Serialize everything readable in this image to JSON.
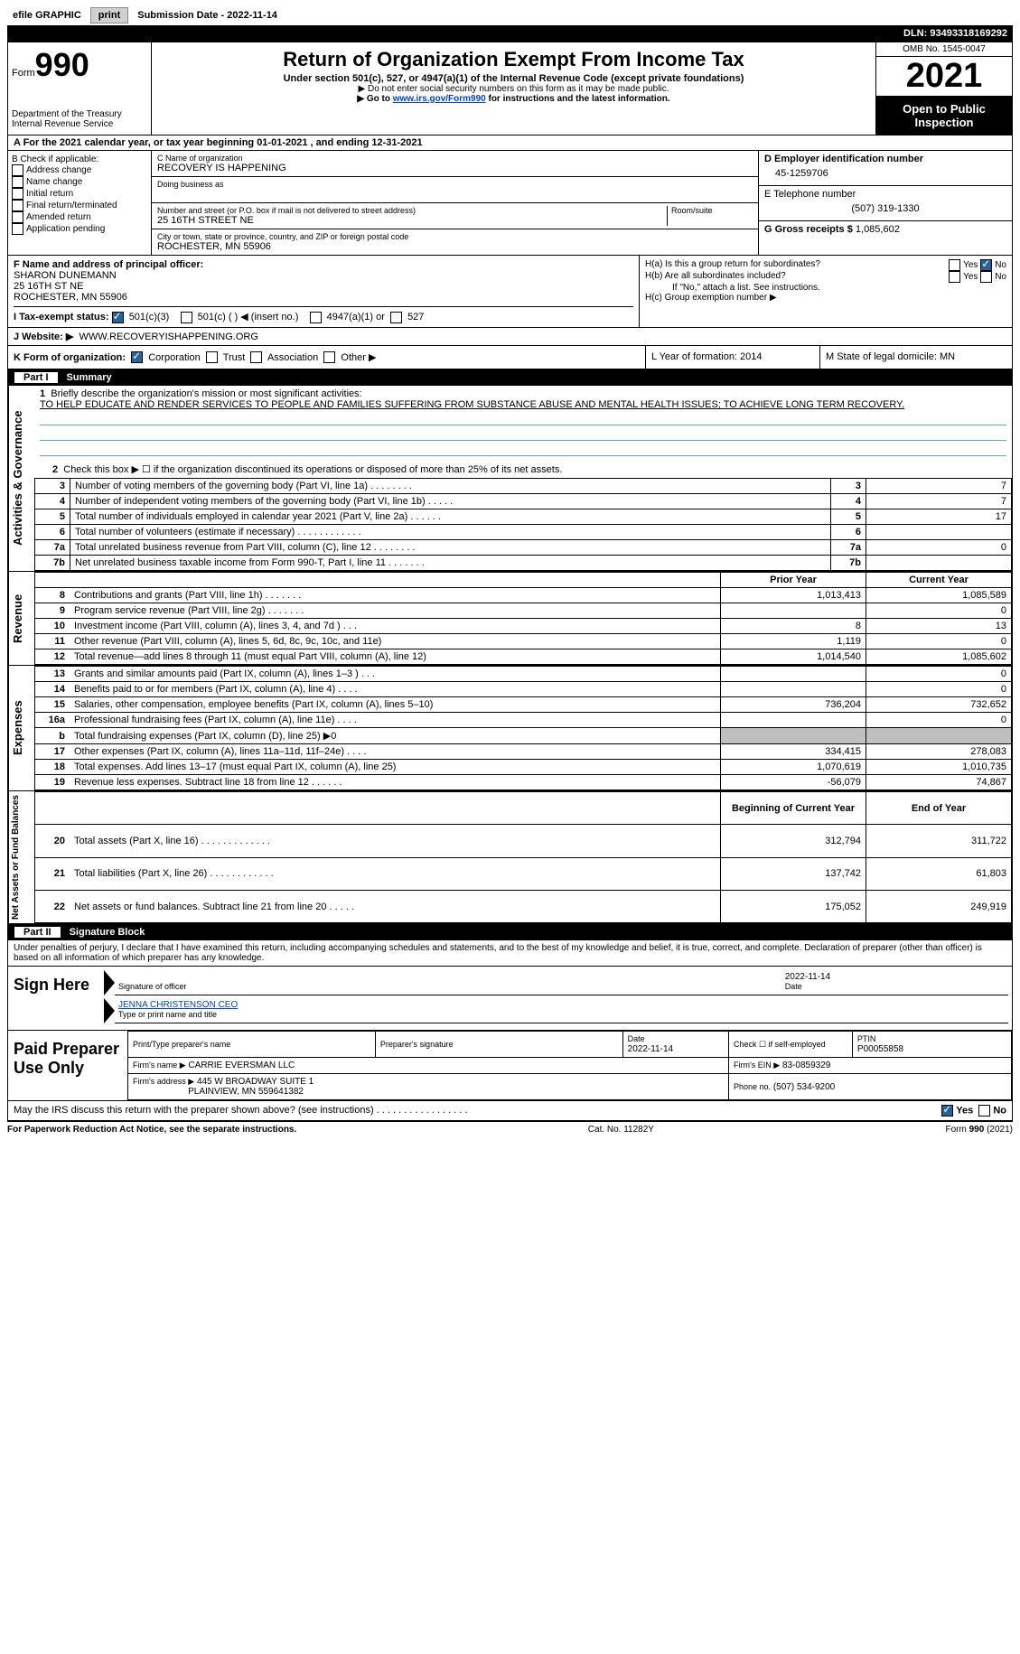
{
  "top_bar": {
    "efile_label": "efile GRAPHIC",
    "print_btn": "print",
    "submission_label": "Submission Date - 2022-11-14",
    "dln": "DLN: 93493318169292"
  },
  "header": {
    "form_word": "Form",
    "form_number": "990",
    "dept": "Department of the Treasury",
    "irs": "Internal Revenue Service",
    "title": "Return of Organization Exempt From Income Tax",
    "subtitle": "Under section 501(c), 527, or 4947(a)(1) of the Internal Revenue Code (except private foundations)",
    "note1": "▶ Do not enter social security numbers on this form as it may be made public.",
    "note2_pre": "▶ Go to ",
    "note2_link": "www.irs.gov/Form990",
    "note2_post": " for instructions and the latest information.",
    "omb": "OMB No. 1545-0047",
    "year": "2021",
    "open_public": "Open to Public Inspection"
  },
  "row_a": "A For the 2021 calendar year, or tax year beginning 01-01-2021     , and ending 12-31-2021",
  "box_b": {
    "label": "B Check if applicable:",
    "items": [
      "Address change",
      "Name change",
      "Initial return",
      "Final return/terminated",
      "Amended return",
      "Application pending"
    ]
  },
  "box_c": {
    "name_label": "C Name of organization",
    "name": "RECOVERY IS HAPPENING",
    "dba_label": "Doing business as",
    "addr_label": "Number and street (or P.O. box if mail is not delivered to street address)",
    "room_label": "Room/suite",
    "addr": "25 16TH STREET NE",
    "city_label": "City or town, state or province, country, and ZIP or foreign postal code",
    "city": "ROCHESTER, MN  55906"
  },
  "box_d": {
    "label": "D Employer identification number",
    "value": "45-1259706"
  },
  "box_e": {
    "label": "E Telephone number",
    "value": "(507) 319-1330"
  },
  "box_g": {
    "label": "G Gross receipts $",
    "value": "1,085,602"
  },
  "box_f": {
    "label": "F Name and address of principal officer:",
    "name": "SHARON DUNEMANN",
    "addr1": "25 16TH ST NE",
    "addr2": "ROCHESTER, MN  55906"
  },
  "box_h": {
    "ha": "H(a)  Is this a group return for subordinates?",
    "hb": "H(b)  Are all subordinates included?",
    "hb_note": "If \"No,\" attach a list. See instructions.",
    "hc": "H(c)  Group exemption number ▶"
  },
  "row_i": {
    "label": "I    Tax-exempt status:",
    "opts": [
      "501(c)(3)",
      "501(c) (   ) ◀ (insert no.)",
      "4947(a)(1) or",
      "527"
    ]
  },
  "row_j": {
    "label": "J   Website: ▶",
    "value": "WWW.RECOVERYISHAPPENING.ORG"
  },
  "row_k": {
    "label": "K Form of organization:",
    "opts": [
      "Corporation",
      "Trust",
      "Association",
      "Other ▶"
    ]
  },
  "row_l": {
    "label": "L Year of formation: 2014"
  },
  "row_m": {
    "label": "M State of legal domicile: MN"
  },
  "part1": {
    "header": "Summary",
    "line1_label": "Briefly describe the organization's mission or most significant activities:",
    "line1_text": "TO HELP EDUCATE AND RENDER SERVICES TO PEOPLE AND FAMILIES SUFFERING FROM SUBSTANCE ABUSE AND MENTAL HEALTH ISSUES; TO ACHIEVE LONG TERM RECOVERY.",
    "line2": "Check this box ▶ ☐ if the organization discontinued its operations or disposed of more than 25% of its net assets.",
    "governance": [
      {
        "n": "3",
        "t": "Number of voting members of the governing body (Part VI, line 1a)   .    .    .    .    .    .    .    .",
        "v": "7"
      },
      {
        "n": "4",
        "t": "Number of independent voting members of the governing body (Part VI, line 1b)   .    .    .    .    .",
        "v": "7"
      },
      {
        "n": "5",
        "t": "Total number of individuals employed in calendar year 2021 (Part V, line 2a)   .    .    .    .    .    .",
        "v": "17"
      },
      {
        "n": "6",
        "t": "Total number of volunteers (estimate if necessary)     .    .    .    .    .    .    .    .    .    .    .    .",
        "v": ""
      },
      {
        "n": "7a",
        "t": "Total unrelated business revenue from Part VIII, column (C), line 12   .    .    .    .    .    .    .    .",
        "v": "0"
      },
      {
        "n": "7b",
        "t": "Net unrelated business taxable income from Form 990-T, Part I, line 11   .    .    .    .    .    .    .",
        "v": ""
      }
    ],
    "col_prior": "Prior Year",
    "col_current": "Current Year",
    "revenue": [
      {
        "n": "8",
        "t": "Contributions and grants (Part VIII, line 1h)    .    .    .    .    .    .    .",
        "p": "1,013,413",
        "c": "1,085,589"
      },
      {
        "n": "9",
        "t": "Program service revenue (Part VIII, line 2g)   .    .    .    .    .    .    .",
        "p": "",
        "c": "0"
      },
      {
        "n": "10",
        "t": "Investment income (Part VIII, column (A), lines 3, 4, and 7d )    .    .    .",
        "p": "8",
        "c": "13"
      },
      {
        "n": "11",
        "t": "Other revenue (Part VIII, column (A), lines 5, 6d, 8c, 9c, 10c, and 11e)",
        "p": "1,119",
        "c": "0"
      },
      {
        "n": "12",
        "t": "Total revenue—add lines 8 through 11 (must equal Part VIII, column (A), line 12)",
        "p": "1,014,540",
        "c": "1,085,602"
      }
    ],
    "expenses": [
      {
        "n": "13",
        "t": "Grants and similar amounts paid (Part IX, column (A), lines 1–3 )    .    .    .",
        "p": "",
        "c": "0"
      },
      {
        "n": "14",
        "t": "Benefits paid to or for members (Part IX, column (A), line 4)    .    .    .    .",
        "p": "",
        "c": "0"
      },
      {
        "n": "15",
        "t": "Salaries, other compensation, employee benefits (Part IX, column (A), lines 5–10)",
        "p": "736,204",
        "c": "732,652"
      },
      {
        "n": "16a",
        "t": "Professional fundraising fees (Part IX, column (A), line 11e)    .    .    .    .",
        "p": "",
        "c": "0"
      },
      {
        "n": "b",
        "t": "Total fundraising expenses (Part IX, column (D), line 25) ▶0",
        "p": "grey",
        "c": "grey"
      },
      {
        "n": "17",
        "t": "Other expenses (Part IX, column (A), lines 11a–11d, 11f–24e)    .    .    .    .",
        "p": "334,415",
        "c": "278,083"
      },
      {
        "n": "18",
        "t": "Total expenses. Add lines 13–17 (must equal Part IX, column (A), line 25)",
        "p": "1,070,619",
        "c": "1,010,735"
      },
      {
        "n": "19",
        "t": "Revenue less expenses. Subtract line 18 from line 12   .    .    .    .    .    .",
        "p": "-56,079",
        "c": "74,867"
      }
    ],
    "col_begin": "Beginning of Current Year",
    "col_end": "End of Year",
    "netassets": [
      {
        "n": "20",
        "t": "Total assets (Part X, line 16)  .    .    .    .    .    .    .    .    .    .    .    .    .",
        "p": "312,794",
        "c": "311,722"
      },
      {
        "n": "21",
        "t": "Total liabilities (Part X, line 26)  .    .    .    .    .    .    .    .    .    .    .    .",
        "p": "137,742",
        "c": "61,803"
      },
      {
        "n": "22",
        "t": "Net assets or fund balances. Subtract line 21 from line 20   .    .    .    .    .",
        "p": "175,052",
        "c": "249,919"
      }
    ],
    "vlabels": {
      "gov": "Activities & Governance",
      "rev": "Revenue",
      "exp": "Expenses",
      "net": "Net Assets or Fund Balances"
    }
  },
  "part2": {
    "header": "Signature Block",
    "perjury": "Under penalties of perjury, I declare that I have examined this return, including accompanying schedules and statements, and to the best of my knowledge and belief, it is true, correct, and complete. Declaration of preparer (other than officer) is based on all information of which preparer has any knowledge.",
    "sign_here": "Sign Here",
    "sig_officer": "Signature of officer",
    "sig_date": "2022-11-14",
    "date_label": "Date",
    "name_title": "JENNA CHRISTENSON  CEO",
    "name_title_label": "Type or print name and title",
    "paid_prep": "Paid Preparer Use Only",
    "prep_name_label": "Print/Type preparer's name",
    "prep_sig_label": "Preparer's signature",
    "prep_date_label": "Date",
    "prep_date": "2022-11-14",
    "check_self": "Check ☐ if self-employed",
    "ptin_label": "PTIN",
    "ptin": "P00055858",
    "firm_name_label": "Firm's name      ▶",
    "firm_name": "CARRIE EVERSMAN LLC",
    "firm_ein_label": "Firm's EIN ▶",
    "firm_ein": "83-0859329",
    "firm_addr_label": "Firm's address ▶",
    "firm_addr1": "445 W BROADWAY SUITE 1",
    "firm_addr2": "PLAINVIEW, MN  559641382",
    "phone_label": "Phone no.",
    "phone": "(507) 534-9200",
    "discuss": "May the IRS discuss this return with the preparer shown above? (see instructions)    .    .    .    .    .    .    .    .    .    .    .    .    .    .    .    .    ."
  },
  "footer": {
    "left": "For Paperwork Reduction Act Notice, see the separate instructions.",
    "mid": "Cat. No. 11282Y",
    "right": "Form 990 (2021)"
  }
}
